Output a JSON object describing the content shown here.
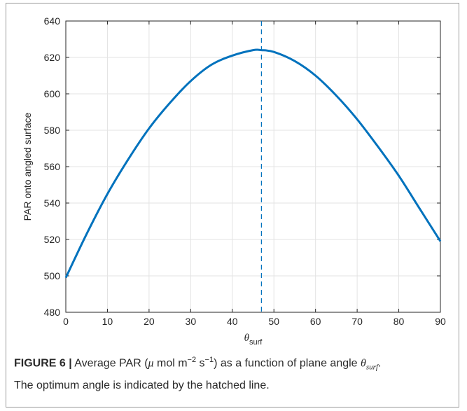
{
  "chart_data": {
    "type": "line",
    "title": "",
    "xlabel": "θ",
    "xlabel_subscript": "surf",
    "ylabel": "PAR onto angled surface",
    "xlim": [
      0,
      90
    ],
    "ylim": [
      480,
      640
    ],
    "xticks": [
      0,
      10,
      20,
      30,
      40,
      50,
      60,
      70,
      80,
      90
    ],
    "yticks": [
      480,
      500,
      520,
      540,
      560,
      580,
      600,
      620,
      640
    ],
    "grid": true,
    "series": [
      {
        "color": "#0072bd",
        "x": [
          0,
          5,
          10,
          15,
          20,
          25,
          30,
          35,
          40,
          45,
          47,
          50,
          55,
          60,
          65,
          70,
          75,
          80,
          85,
          90
        ],
        "y": [
          499,
          523,
          545,
          564,
          581,
          595,
          607,
          616,
          621,
          624,
          624,
          623,
          618,
          610,
          599,
          586,
          571,
          555,
          537,
          519
        ]
      }
    ],
    "annotations": [
      {
        "type": "vertical-dashed-line",
        "x": 47,
        "color": "#0072bd",
        "meaning": "optimum angle"
      }
    ]
  },
  "caption": {
    "label": "FIGURE 6 |",
    "line1_a": "Average PAR (",
    "mu": "μ",
    "line1_b": " mol m",
    "sup1": "−2",
    "line1_c": " s",
    "sup2": "−1",
    "line1_d": ") as a function of plane angle ",
    "theta": "θ",
    "theta_sub": "surf",
    "line1_e": ".",
    "line2": "The optimum angle is indicated by the hatched line."
  }
}
